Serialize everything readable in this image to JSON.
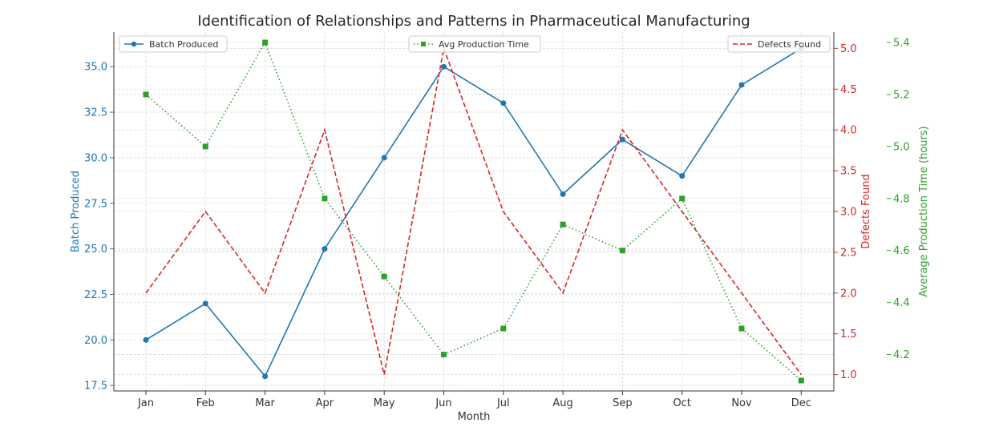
{
  "chart_data": {
    "type": "line",
    "title": "Identification of Relationships and Patterns in Pharmaceutical Manufacturing",
    "xlabel": "Month",
    "categories": [
      "Jan",
      "Feb",
      "Mar",
      "Apr",
      "May",
      "Jun",
      "Jul",
      "Aug",
      "Sep",
      "Oct",
      "Nov",
      "Dec"
    ],
    "grid": true,
    "axes": [
      {
        "id": "left",
        "label": "Batch Produced",
        "color": "#1f77b4",
        "ylim": [
          17.2,
          36.9
        ],
        "ticks": [
          17.5,
          20.0,
          22.5,
          25.0,
          27.5,
          30.0,
          32.5,
          35.0
        ],
        "tick_labels": [
          "17.5",
          "20.0",
          "22.5",
          "25.0",
          "27.5",
          "30.0",
          "32.5",
          "35.0"
        ]
      },
      {
        "id": "right1",
        "label": "Defects Found",
        "color": "#d62728",
        "ylim": [
          0.8,
          5.2
        ],
        "ticks": [
          1.0,
          1.5,
          2.0,
          2.5,
          3.0,
          3.5,
          4.0,
          4.5,
          5.0
        ],
        "tick_labels": [
          "1.0",
          "1.5",
          "2.0",
          "2.5",
          "3.0",
          "3.5",
          "4.0",
          "4.5",
          "5.0"
        ]
      },
      {
        "id": "right2",
        "label": "Average Production Time (hours)",
        "color": "#2ca02c",
        "ylim": [
          4.06,
          5.44
        ],
        "ticks": [
          4.2,
          4.4,
          4.6,
          4.8,
          5.0,
          5.2,
          5.4
        ],
        "tick_labels": [
          "4.2",
          "4.4",
          "4.6",
          "4.8",
          "5.0",
          "5.2",
          "5.4"
        ]
      }
    ],
    "series": [
      {
        "name": "Batch Produced",
        "axis": "left",
        "color": "#1f77b4",
        "style": "solid",
        "marker": "circle",
        "values": [
          20,
          22,
          18,
          25,
          30,
          35,
          33,
          28,
          31,
          29,
          34,
          36
        ],
        "legend_position": "top-left"
      },
      {
        "name": "Defects Found",
        "axis": "right1",
        "color": "#d62728",
        "style": "dashed",
        "marker": "none",
        "values": [
          2,
          3,
          2,
          4,
          1,
          5,
          3,
          2,
          4,
          3,
          2,
          1
        ],
        "legend_position": "top-right"
      },
      {
        "name": "Avg Production Time",
        "axis": "right2",
        "color": "#2ca02c",
        "style": "dotted",
        "marker": "square",
        "values": [
          5.2,
          5.0,
          5.4,
          4.8,
          4.5,
          4.2,
          4.3,
          4.7,
          4.6,
          4.8,
          4.3,
          4.1
        ],
        "legend_position": "top-center"
      }
    ]
  }
}
